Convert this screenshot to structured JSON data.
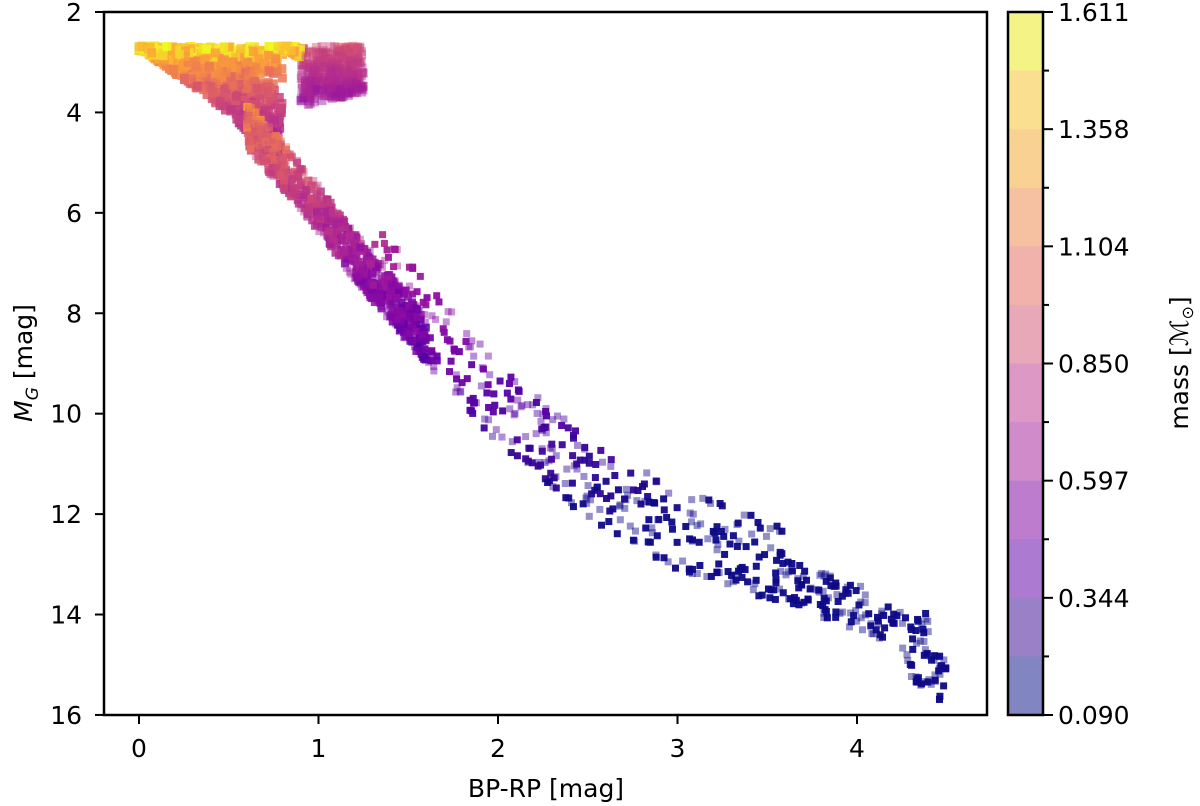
{
  "chart_data": {
    "type": "scatter",
    "title": "",
    "xlabel": "BP-RP [mag]",
    "ylabel": "M_G [mag]",
    "ylabel_main": "M",
    "ylabel_sub": "G",
    "ylabel_rest": " [mag]",
    "xlim": [
      -0.2,
      4.7
    ],
    "ylim": [
      16,
      2
    ],
    "y_inverted": true,
    "grid": false,
    "x_ticks": [
      "0",
      "1",
      "2",
      "3",
      "4"
    ],
    "x_tick_values": [
      0,
      1,
      2,
      3,
      4
    ],
    "y_ticks": [
      "2",
      "4",
      "6",
      "8",
      "10",
      "12",
      "14",
      "16"
    ],
    "y_tick_values": [
      2,
      4,
      6,
      8,
      10,
      12,
      14,
      16
    ],
    "marker": "square",
    "colormap": "plasma",
    "colorbar": {
      "label": "mass [M☉]",
      "label_text": "mass [",
      "label_symbol": "ℳ",
      "label_sub": "⊙",
      "label_close": "]",
      "ticks": [
        "1.611",
        "1.358",
        "1.104",
        "0.850",
        "0.597",
        "0.344",
        "0.090"
      ],
      "tick_values": [
        1.611,
        1.358,
        1.104,
        0.85,
        0.597,
        0.344,
        0.09
      ],
      "min": 0.09,
      "max": 1.611,
      "n_bins": 12,
      "bin_colors": [
        "#f3f386",
        "#f9df8f",
        "#f9d193",
        "#f6c1a0",
        "#f0b2aa",
        "#e8a8b8",
        "#dd98c6",
        "#d08bcb",
        "#be7ccf",
        "#ac7ad1",
        "#9a80c6",
        "#8185c2"
      ]
    },
    "description": "Color-magnitude diagram of simulated stars; upper main sequence and turnoff region near BP-RP 0-1.3, M_G 2.7-5 (mass ~1.3-1.6), main sequence extends down to BP-RP ~4.5, M_G ~15.4 (mass ~0.09).",
    "main_sequence_ridge": [
      {
        "bp_rp": 0.0,
        "mg": 2.7
      },
      {
        "bp_rp": 0.5,
        "mg": 4.0
      },
      {
        "bp_rp": 0.9,
        "mg": 5.6
      },
      {
        "bp_rp": 1.2,
        "mg": 7.0
      },
      {
        "bp_rp": 1.6,
        "mg": 8.7
      },
      {
        "bp_rp": 2.0,
        "mg": 10.3
      },
      {
        "bp_rp": 2.5,
        "mg": 11.8
      },
      {
        "bp_rp": 3.0,
        "mg": 12.8
      },
      {
        "bp_rp": 3.5,
        "mg": 13.4
      },
      {
        "bp_rp": 4.0,
        "mg": 14.0
      },
      {
        "bp_rp": 4.4,
        "mg": 14.6
      },
      {
        "bp_rp": 4.45,
        "mg": 15.4
      }
    ],
    "turnoff_region": {
      "bp_rp_range": [
        0.0,
        1.25
      ],
      "mg_range": [
        2.65,
        5.0
      ],
      "mass_range": [
        1.2,
        1.611
      ]
    }
  }
}
